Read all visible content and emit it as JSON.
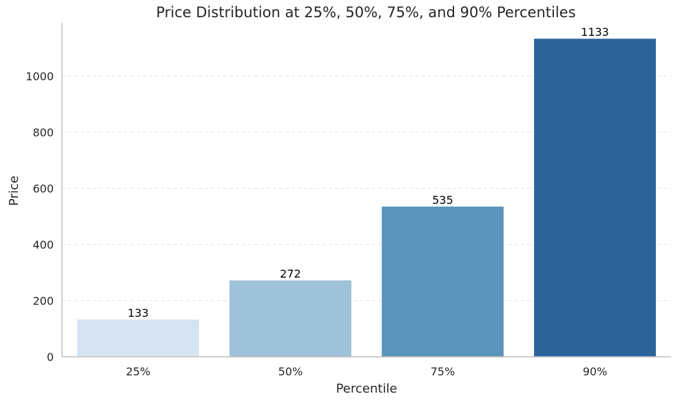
{
  "chart_data": {
    "type": "bar",
    "title": "Price Distribution at 25%, 50%, 75%, and 90% Percentiles",
    "xlabel": "Percentile",
    "ylabel": "Price",
    "categories": [
      "25%",
      "50%",
      "75%",
      "90%"
    ],
    "values": [
      133,
      272,
      535,
      1133
    ],
    "data_labels": [
      "133",
      "272",
      "535",
      "1133"
    ],
    "ylim": [
      0,
      1190
    ],
    "yticks": [
      0,
      200,
      400,
      600,
      800,
      1000
    ],
    "ytick_labels": [
      "0",
      "200",
      "400",
      "600",
      "800",
      "1000"
    ],
    "grid": "horizontal dashed",
    "legend": "none",
    "bar_colors": [
      "#d6e3f0",
      "#9ec2d7",
      "#5b94ba",
      "#2c6499"
    ],
    "axis_color": "#bdbdbd",
    "grid_color": "#e3e3e3",
    "text_color": "#262626",
    "label_color": "#000000"
  }
}
